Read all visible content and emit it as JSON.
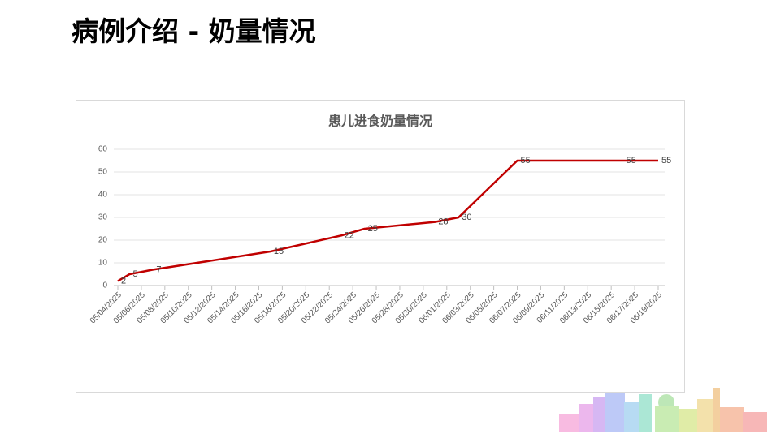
{
  "page": {
    "title": "病例介绍 - 奶量情况"
  },
  "chart_data": {
    "type": "line",
    "title": "患儿进食奶量情况",
    "x": [
      "05/04/2025",
      "05/05/2025",
      "05/07/2025",
      "05/17/2025",
      "05/23/2025",
      "05/25/2025",
      "05/31/2025",
      "06/02/2025",
      "06/07/2025",
      "06/16/2025",
      "06/19/2025"
    ],
    "series": [
      {
        "color": "#c00000",
        "values": [
          2,
          5,
          7,
          15,
          22,
          25,
          28,
          30,
          55,
          55,
          55
        ]
      }
    ],
    "xlim": [
      "05/04/2025",
      "06/19/2025"
    ],
    "xticks": [
      "05/04/2025",
      "05/06/2025",
      "05/08/2025",
      "05/10/2025",
      "05/12/2025",
      "05/14/2025",
      "05/16/2025",
      "05/18/2025",
      "05/20/2025",
      "05/22/2025",
      "05/24/2025",
      "05/26/2025",
      "05/28/2025",
      "05/30/2025",
      "06/01/2025",
      "06/03/2025",
      "06/05/2025",
      "06/07/2025",
      "06/09/2025",
      "06/11/2025",
      "06/13/2025",
      "06/15/2025",
      "06/17/2025",
      "06/19/2025"
    ],
    "ylim": [
      0,
      60
    ],
    "yticks": [
      0,
      10,
      20,
      30,
      40,
      50,
      60
    ],
    "grid": true
  }
}
